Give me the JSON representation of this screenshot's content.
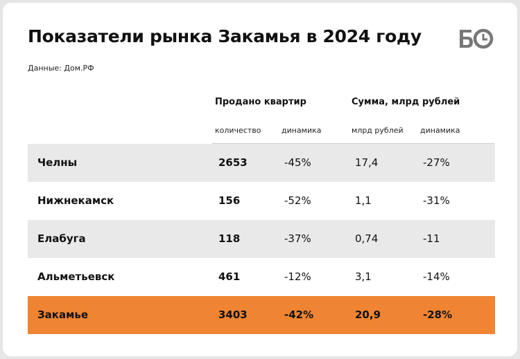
{
  "title": "Показатели рынка Закамья в 2024 году",
  "source": "Данные: Дом.РФ",
  "logo_text": "БО",
  "columns": {
    "group1": "Продано квартир",
    "group2": "Сумма, млрд рублей",
    "sub1": "количество",
    "sub2": "динамика",
    "sub3": "млрд рублей",
    "sub4": "динамика"
  },
  "rows": [
    {
      "name": "Челны",
      "count": "2653",
      "count_change": "-45%",
      "sum": "17,4",
      "sum_change": "-27%"
    },
    {
      "name": "Нижнекамск",
      "count": "156",
      "count_change": "-52%",
      "sum": "1,1",
      "sum_change": "-31%"
    },
    {
      "name": "Елабуга",
      "count": "118",
      "count_change": "-37%",
      "sum": "0,74",
      "sum_change": "-11"
    },
    {
      "name": "Альметьевск",
      "count": "461",
      "count_change": "-12%",
      "sum": "3,1",
      "sum_change": "-14%"
    },
    {
      "name": "Закамье",
      "count": "3403",
      "count_change": "-42%",
      "sum": "20,9",
      "sum_change": "-28%"
    }
  ],
  "colors": {
    "highlight": "#ef8432",
    "shade": "#e9e9e9",
    "background": "#e6e6e6"
  }
}
